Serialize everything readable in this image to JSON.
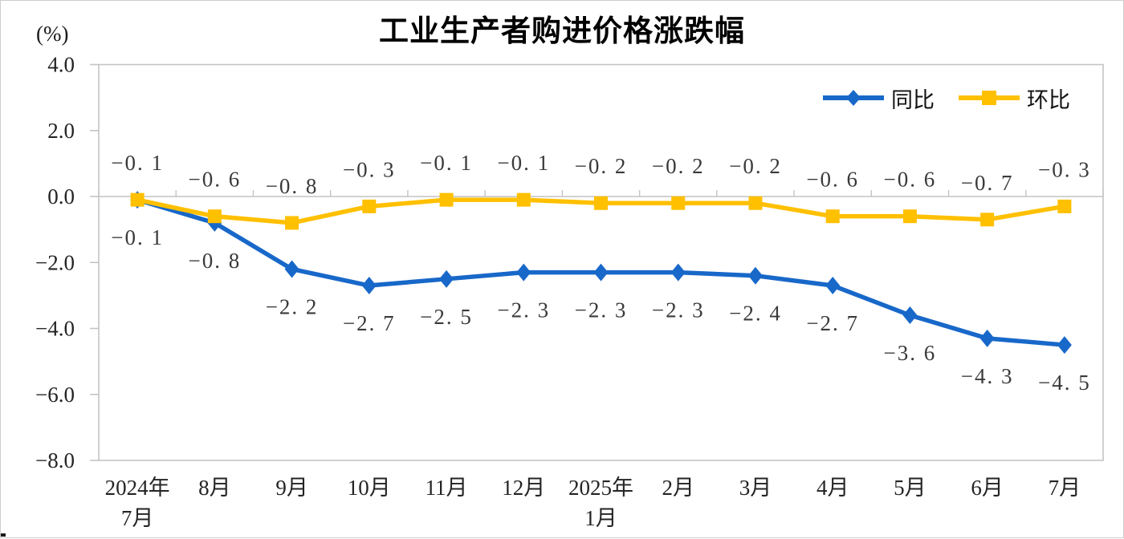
{
  "page": {
    "background": "#ffffff",
    "frame_border_color": "#cdcdcd"
  },
  "chart_data": {
    "type": "line",
    "title": "工业生产者购进价格涨跌幅",
    "unit_label": "(%)",
    "xlabel": "",
    "ylabel": "(%)",
    "ylim": [
      -8.0,
      4.0
    ],
    "ytick_interval": 2.0,
    "y_ticks": [
      "4.0",
      "2.0",
      "0.0",
      "−2.0",
      "−4.0",
      "−6.0",
      "−8.0"
    ],
    "categories": [
      "2024年\n7月",
      "8月",
      "9月",
      "10月",
      "11月",
      "12月",
      "2025年\n1月",
      "2月",
      "3月",
      "4月",
      "5月",
      "6月",
      "7月"
    ],
    "series": [
      {
        "id": "yoy",
        "name": "同比",
        "color": "#1868C9",
        "marker": "diamond",
        "label_position": "below",
        "values": [
          -0.1,
          -0.8,
          -2.2,
          -2.7,
          -2.5,
          -2.3,
          -2.3,
          -2.3,
          -2.4,
          -2.7,
          -3.6,
          -4.3,
          -4.5
        ],
        "labels": [
          "−0. 1",
          "−0. 8",
          "−2. 2",
          "−2. 7",
          "−2. 5",
          "−2. 3",
          "−2. 3",
          "−2. 3",
          "−2. 4",
          "−2. 7",
          "−3. 6",
          "−4. 3",
          "−4. 5"
        ]
      },
      {
        "id": "mom",
        "name": "环比",
        "color": "#FFC000",
        "marker": "square",
        "label_position": "above",
        "values": [
          -0.1,
          -0.6,
          -0.8,
          -0.3,
          -0.1,
          -0.1,
          -0.2,
          -0.2,
          -0.2,
          -0.6,
          -0.6,
          -0.7,
          -0.3
        ],
        "labels": [
          "−0. 1",
          "−0. 6",
          "−0. 8",
          "−0. 3",
          "−0. 1",
          "−0. 1",
          "−0. 2",
          "−0. 2",
          "−0. 2",
          "−0. 6",
          "−0. 6",
          "−0. 7",
          "−0. 3"
        ]
      }
    ],
    "grid": "off",
    "legend_position": "top-right-inside",
    "colors": {
      "axis": "#c4c4c4",
      "tick_text": "#242424",
      "data_label_text": "#3a3a3a",
      "title_text": "#000000"
    }
  }
}
